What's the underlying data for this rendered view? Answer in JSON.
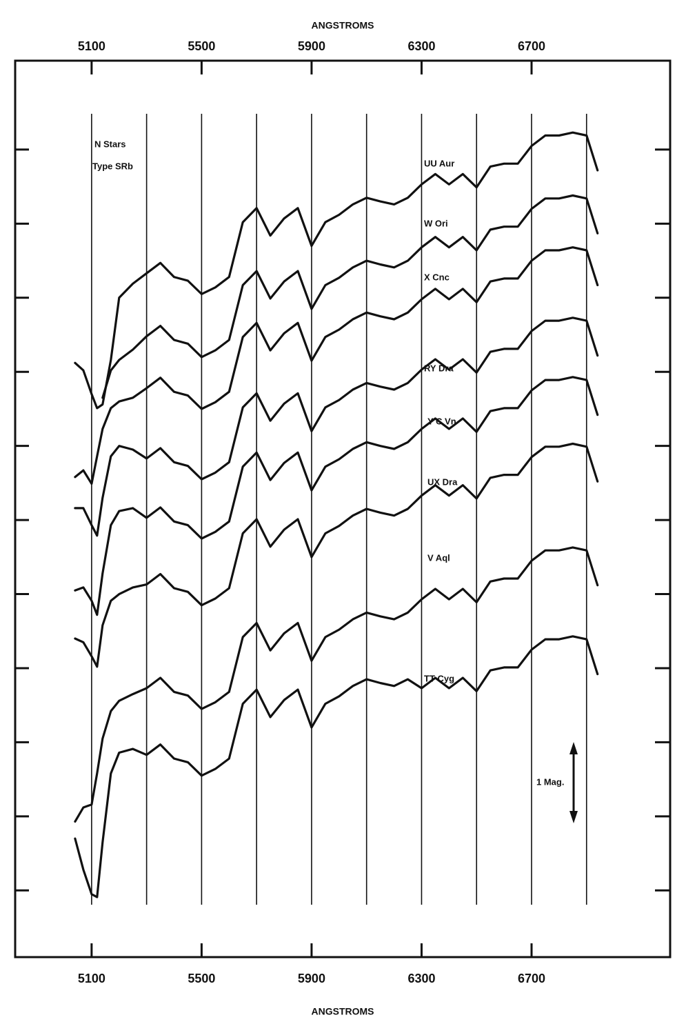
{
  "chart_data": {
    "type": "line",
    "x_label_top": "ANGSTROMS",
    "x_label": "ANGSTROMS",
    "annotations": [
      "N Stars",
      "Type SRb",
      "1 Mag."
    ],
    "xlim": [
      4822,
      7204
    ],
    "xticks": [
      5100,
      5500,
      5900,
      6300,
      6700
    ],
    "vertical_lines": [
      5100,
      5300,
      5500,
      5700,
      5900,
      6100,
      6300,
      6500,
      6700,
      6900
    ],
    "ylim": [
      10.9,
      -1.2
    ],
    "yticks": [
      0,
      1,
      2,
      3,
      4,
      5,
      6,
      7,
      8,
      9,
      10
    ],
    "x": [
      5040,
      5070,
      5100,
      5120,
      5140,
      5170,
      5200,
      5250,
      5300,
      5350,
      5400,
      5450,
      5500,
      5550,
      5600,
      5650,
      5700,
      5750,
      5800,
      5850,
      5900,
      5950,
      6000,
      6050,
      6100,
      6150,
      6200,
      6250,
      6300,
      6350,
      6400,
      6450,
      6500,
      6550,
      6600,
      6650,
      6700,
      6750,
      6800,
      6850,
      6900,
      6940
    ],
    "series": [
      {
        "name": "UU Aur",
        "color": "#111111",
        "values": [
          2.88,
          2.98,
          3.3,
          3.49,
          3.44,
          2.84,
          2.0,
          1.81,
          1.67,
          1.53,
          1.72,
          1.77,
          1.95,
          1.86,
          1.72,
          0.98,
          0.79,
          1.16,
          0.93,
          0.79,
          1.3,
          0.98,
          0.88,
          0.74,
          0.65,
          0.7,
          0.74,
          0.65,
          0.47,
          0.33,
          0.47,
          0.33,
          0.51,
          0.23,
          0.19,
          0.19,
          -0.05,
          -0.19,
          -0.19,
          -0.23,
          -0.19,
          0.28
        ]
      },
      {
        "name": "W Ori",
        "color": "#111111",
        "values": [
          null,
          null,
          null,
          null,
          3.35,
          2.98,
          2.84,
          2.7,
          2.52,
          2.38,
          2.57,
          2.62,
          2.8,
          2.71,
          2.57,
          1.83,
          1.64,
          2.01,
          1.78,
          1.64,
          2.15,
          1.83,
          1.73,
          1.59,
          1.5,
          1.55,
          1.59,
          1.5,
          1.32,
          1.18,
          1.32,
          1.18,
          1.36,
          1.08,
          1.04,
          1.04,
          0.8,
          0.66,
          0.66,
          0.62,
          0.66,
          1.13
        ]
      },
      {
        "name": "X Cnc",
        "color": "#111111",
        "values": [
          4.42,
          4.33,
          4.51,
          4.14,
          3.77,
          3.49,
          3.4,
          3.35,
          3.22,
          3.08,
          3.27,
          3.32,
          3.5,
          3.41,
          3.27,
          2.53,
          2.34,
          2.71,
          2.48,
          2.34,
          2.85,
          2.53,
          2.43,
          2.29,
          2.2,
          2.25,
          2.29,
          2.2,
          2.02,
          1.88,
          2.02,
          1.88,
          2.06,
          1.78,
          1.74,
          1.74,
          1.5,
          1.36,
          1.36,
          1.32,
          1.36,
          1.83
        ]
      },
      {
        "name": "RY Dra",
        "color": "#111111",
        "values": [
          4.84,
          4.84,
          5.07,
          5.21,
          4.7,
          4.14,
          4.0,
          4.05,
          4.17,
          4.03,
          4.22,
          4.27,
          4.45,
          4.36,
          4.22,
          3.48,
          3.29,
          3.66,
          3.43,
          3.29,
          3.8,
          3.48,
          3.38,
          3.24,
          3.15,
          3.2,
          3.24,
          3.15,
          2.97,
          2.83,
          2.97,
          2.83,
          3.01,
          2.73,
          2.69,
          2.69,
          2.45,
          2.31,
          2.31,
          2.27,
          2.31,
          2.78
        ]
      },
      {
        "name": "Y C Vn",
        "color": "#111111",
        "values": [
          5.95,
          5.91,
          6.09,
          6.28,
          5.72,
          5.07,
          4.88,
          4.84,
          4.97,
          4.83,
          5.02,
          5.07,
          5.25,
          5.16,
          5.02,
          4.28,
          4.09,
          4.46,
          4.23,
          4.09,
          4.6,
          4.28,
          4.18,
          4.04,
          3.95,
          4.0,
          4.04,
          3.95,
          3.77,
          3.63,
          3.77,
          3.63,
          3.81,
          3.53,
          3.49,
          3.49,
          3.25,
          3.11,
          3.11,
          3.07,
          3.11,
          3.58
        ]
      },
      {
        "name": "UX Dra",
        "color": "#111111",
        "values": [
          6.6,
          6.65,
          6.84,
          6.98,
          6.42,
          6.09,
          6.0,
          5.91,
          5.87,
          5.73,
          5.92,
          5.97,
          6.15,
          6.06,
          5.92,
          5.18,
          4.99,
          5.36,
          5.13,
          4.99,
          5.5,
          5.18,
          5.08,
          4.94,
          4.85,
          4.9,
          4.94,
          4.85,
          4.67,
          4.53,
          4.67,
          4.53,
          4.71,
          4.43,
          4.39,
          4.39,
          4.15,
          4.01,
          4.01,
          3.97,
          4.01,
          4.48
        ]
      },
      {
        "name": "V Aql",
        "color": "#111111",
        "values": [
          9.07,
          8.88,
          8.84,
          8.42,
          7.95,
          7.58,
          7.44,
          7.35,
          7.27,
          7.13,
          7.32,
          7.37,
          7.55,
          7.46,
          7.32,
          6.58,
          6.39,
          6.76,
          6.53,
          6.39,
          6.9,
          6.58,
          6.48,
          6.34,
          6.25,
          6.3,
          6.34,
          6.25,
          6.07,
          5.93,
          6.07,
          5.93,
          6.11,
          5.83,
          5.79,
          5.79,
          5.55,
          5.41,
          5.41,
          5.37,
          5.41,
          5.88
        ]
      },
      {
        "name": "TT Cyg",
        "color": "#111111",
        "values": [
          9.3,
          9.72,
          10.05,
          10.09,
          9.35,
          8.42,
          8.14,
          8.09,
          8.17,
          8.03,
          8.22,
          8.27,
          8.45,
          8.36,
          8.22,
          7.48,
          7.29,
          7.66,
          7.43,
          7.29,
          7.8,
          7.48,
          7.38,
          7.24,
          7.15,
          7.2,
          7.24,
          7.15,
          7.27,
          7.13,
          7.27,
          7.13,
          7.31,
          7.03,
          6.99,
          6.99,
          6.75,
          6.61,
          6.61,
          6.57,
          6.61,
          7.08
        ]
      }
    ]
  }
}
